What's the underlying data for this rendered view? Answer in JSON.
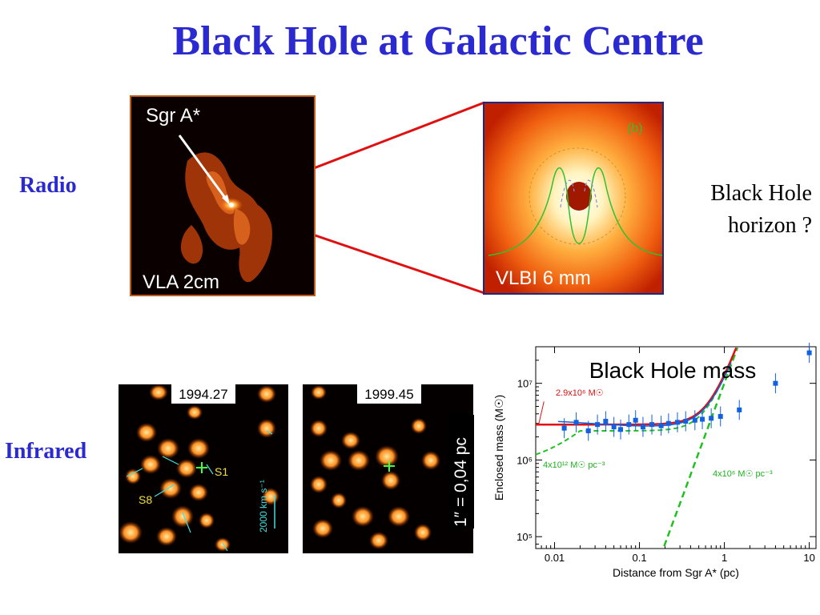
{
  "slide": {
    "title": "Black Hole at Galactic Centre",
    "radio_label": "Radio",
    "infrared_label": "Infrared",
    "vla_image": {
      "target_label": "Sgr A*",
      "caption": "VLA  2cm"
    },
    "vlbi_image": {
      "panel_tag": "(b)",
      "caption": "VLBI 6 mm"
    },
    "horizon_note": [
      "Black Hole",
      "horizon ?"
    ],
    "ir_images": [
      {
        "epoch": "1994.27",
        "star_labels": [
          "S1",
          "S8"
        ],
        "velocity_scale": "2000 km s⁻¹"
      },
      {
        "epoch": "1999.45"
      }
    ],
    "scale_bar": "1″ = 0,04 pc",
    "colors": {
      "title": "#2a2ad0",
      "zoom_lines": "#e01010",
      "frame": "#c25a18"
    }
  },
  "chart_data": {
    "type": "scatter",
    "title": "Black Hole mass",
    "xlabel": "Distance from Sgr A* (pc)",
    "ylabel": "Enclosed mass (M☉)",
    "xscale": "log",
    "yscale": "log",
    "xlim": [
      0.006,
      12
    ],
    "ylim": [
      70000,
      30000000
    ],
    "xticks": [
      0.01,
      0.1,
      1,
      10
    ],
    "xtick_labels": [
      "0.01",
      "0.1",
      "1",
      "10"
    ],
    "yticks": [
      100000,
      1000000,
      10000000
    ],
    "ytick_labels": [
      "10⁵",
      "10⁶",
      "10⁷"
    ],
    "annotations": [
      "2.9x10⁶ M☉",
      "4x10¹² M☉ pc⁻³",
      "4x10⁶ M☉ pc⁻³"
    ],
    "series": [
      {
        "color": "#1060e0",
        "points": [
          {
            "x": 0.013,
            "y": 2600000
          },
          {
            "x": 0.018,
            "y": 3100000
          },
          {
            "x": 0.025,
            "y": 2400000
          },
          {
            "x": 0.032,
            "y": 2900000
          },
          {
            "x": 0.04,
            "y": 3200000
          },
          {
            "x": 0.05,
            "y": 2700000
          },
          {
            "x": 0.06,
            "y": 2500000
          },
          {
            "x": 0.075,
            "y": 2900000
          },
          {
            "x": 0.09,
            "y": 3300000
          },
          {
            "x": 0.11,
            "y": 2700000
          },
          {
            "x": 0.14,
            "y": 2900000
          },
          {
            "x": 0.18,
            "y": 2800000
          },
          {
            "x": 0.22,
            "y": 3000000
          },
          {
            "x": 0.28,
            "y": 3100000
          },
          {
            "x": 0.35,
            "y": 3200000
          },
          {
            "x": 0.45,
            "y": 3300000
          },
          {
            "x": 0.55,
            "y": 3400000
          },
          {
            "x": 0.7,
            "y": 3500000
          },
          {
            "x": 0.9,
            "y": 3700000
          },
          {
            "x": 1.5,
            "y": 4500000
          },
          {
            "x": 4.0,
            "y": 10000000
          },
          {
            "x": 10.0,
            "y": 25000000
          }
        ]
      },
      {
        "type": "line",
        "color": "#e01010",
        "model": "point mass 2.9x10⁶ M☉ + cluster"
      },
      {
        "type": "line",
        "color": "#20c020",
        "model": "4x10¹² M☉ pc⁻³ core"
      },
      {
        "type": "line",
        "color": "#20c020",
        "model": "4x10⁶ M☉ pc⁻³ cluster"
      }
    ]
  }
}
